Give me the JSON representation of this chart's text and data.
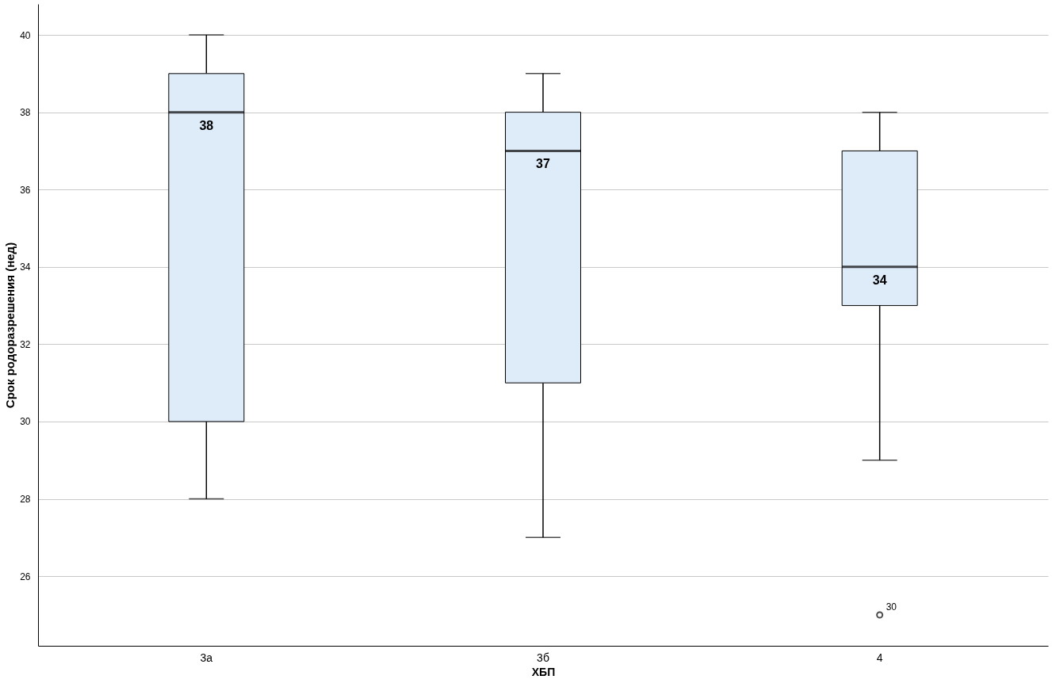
{
  "chart_data": {
    "type": "box",
    "xlabel": "ХБП",
    "ylabel": "Срок родоразрешения (нед)",
    "categories": [
      "3а",
      "3б",
      "4"
    ],
    "boxes": [
      {
        "low": 28,
        "q1": 30,
        "median": 38,
        "q3": 39,
        "high": 40
      },
      {
        "low": 27,
        "q1": 31,
        "median": 37,
        "q3": 38,
        "high": 39
      },
      {
        "low": 29,
        "q1": 33,
        "median": 34,
        "q3": 37,
        "high": 38,
        "outliers": [
          25
        ]
      }
    ],
    "color": "#deebf9",
    "ylim": [
      24.2,
      40.8
    ],
    "yticks": [
      26,
      28,
      30,
      32,
      34,
      36,
      38,
      40
    ],
    "grid": "y",
    "value_labels": [
      "38",
      "37",
      "34"
    ],
    "annotations": [
      "30"
    ]
  }
}
